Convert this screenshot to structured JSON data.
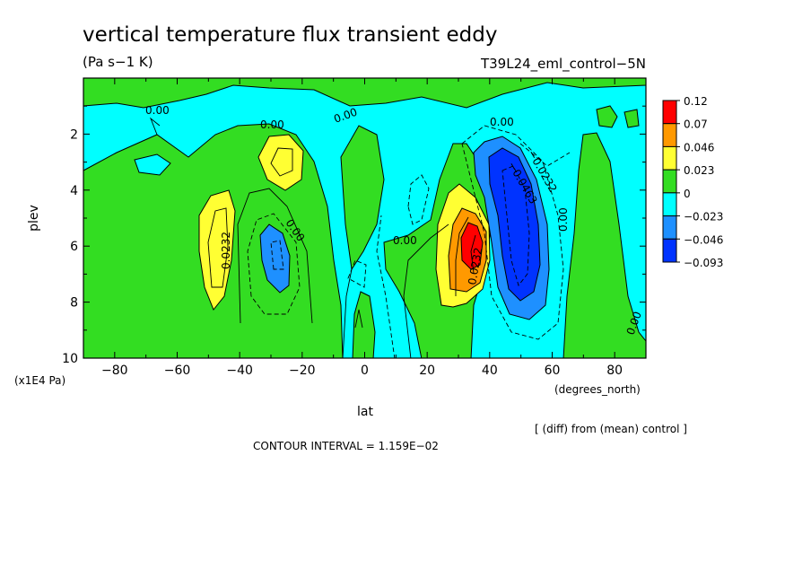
{
  "chart_data": {
    "type": "heatmap",
    "title": "vertical temperature flux transient eddy",
    "units": "(Pa s−1 K)",
    "run_name": "T39L24_eml_control−5N",
    "xlabel": "lat",
    "xunits": "(degrees_north)",
    "ylabel": "plev",
    "yunits": "(x1E4 Pa)",
    "xlim": [
      -90,
      90
    ],
    "ylim": [
      10,
      0
    ],
    "xticks": [
      -80,
      -60,
      -40,
      -20,
      0,
      20,
      40,
      60,
      80
    ],
    "yticks": [
      2,
      4,
      6,
      8,
      10
    ],
    "diff_note": "[ (diff) from (mean) control ]",
    "contour_interval": "CONTOUR INTERVAL = 1.159E−02",
    "contour_labels": [
      "0.00",
      "0.00",
      "0.00",
      "0.00",
      "0.00",
      "0.00",
      "0.00",
      "0.00",
      "0.0232",
      "0.0232",
      "−0.0232",
      "−0.0463"
    ],
    "colorbar": {
      "labels": [
        "0.12",
        "0.07",
        "0.046",
        "0.023",
        "0",
        "−0.023",
        "−0.046",
        "−0.093"
      ],
      "colors": [
        "#ff0000",
        "#ff9900",
        "#ffff33",
        "#33dd22",
        "#00ffff",
        "#1e90ff",
        "#0033ff"
      ]
    },
    "features": [
      {
        "lat": -30,
        "plev": 3.0,
        "value": 0.028
      },
      {
        "lat": -48,
        "plev": 5.8,
        "value": 0.025
      },
      {
        "lat": -29,
        "plev": 6.8,
        "value": -0.03
      },
      {
        "lat": 34,
        "plev": 6.0,
        "value": 0.09
      },
      {
        "lat": 50,
        "plev": 4.8,
        "value": -0.07
      },
      {
        "lat": 0,
        "plev": 8.7,
        "value": -0.012
      },
      {
        "lat": 70,
        "plev": 1.5,
        "value": 0.003
      }
    ]
  }
}
